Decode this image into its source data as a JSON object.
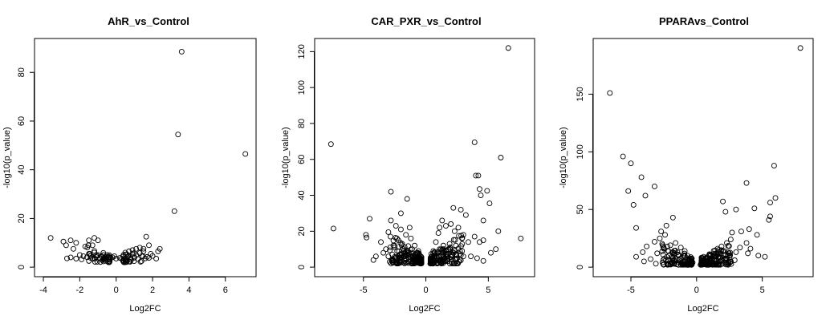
{
  "chart_data": [
    {
      "type": "scatter",
      "title": "AhR_vs_Control",
      "xlabel": "Log2FC",
      "ylabel": "-log10(p_value)",
      "xlim": [
        -4,
        7.2
      ],
      "ylim": [
        0,
        90
      ],
      "xticks": [
        -4,
        -2,
        0,
        2,
        4,
        6
      ],
      "yticks": [
        0,
        20,
        40,
        60,
        80
      ],
      "points": [
        [
          3.6,
          88.5
        ],
        [
          3.4,
          54.5
        ],
        [
          7.1,
          46.5
        ],
        [
          3.2,
          23
        ],
        [
          -3.6,
          12
        ],
        [
          1.65,
          12.5
        ],
        [
          -1.2,
          12
        ],
        [
          -1.0,
          11
        ],
        [
          -1.5,
          11
        ],
        [
          -2.5,
          11
        ],
        [
          -2.9,
          10.5
        ],
        [
          -2.2,
          10
        ],
        [
          -2.75,
          9
        ],
        [
          -1.3,
          9
        ],
        [
          -1.7,
          8.5
        ],
        [
          1.8,
          9
        ],
        [
          -2.35,
          7.5
        ],
        [
          2.4,
          7.5
        ],
        [
          2.3,
          6.5
        ],
        [
          1.3,
          8
        ],
        [
          1.1,
          7.5
        ],
        [
          0.9,
          7
        ],
        [
          0.7,
          6.5
        ],
        [
          0.5,
          6
        ],
        [
          0.4,
          5
        ],
        [
          1.5,
          6.5
        ],
        [
          1.9,
          5.5
        ],
        [
          -2.5,
          4
        ],
        [
          -2.2,
          3.5
        ],
        [
          -1.8,
          4.5
        ],
        [
          -1.5,
          5.5
        ],
        [
          -1.2,
          6
        ],
        [
          -1.0,
          5
        ],
        [
          -0.8,
          4.5
        ],
        [
          -0.6,
          4
        ],
        [
          -0.4,
          3.5
        ],
        [
          -0.2,
          4
        ],
        [
          0.0,
          3.5
        ],
        [
          -0.1,
          4.5
        ],
        [
          -1.9,
          3.2
        ],
        [
          -2.0,
          5
        ],
        [
          -1.4,
          3.8
        ],
        [
          -0.9,
          3.5
        ],
        [
          -0.7,
          3.2
        ],
        [
          -0.5,
          5
        ],
        [
          0.3,
          3.5
        ],
        [
          0.5,
          3.2
        ],
        [
          0.6,
          4.2
        ],
        [
          0.8,
          3.6
        ],
        [
          1.0,
          4
        ],
        [
          1.2,
          3.3
        ],
        [
          1.4,
          4.5
        ],
        [
          1.6,
          3.6
        ],
        [
          1.8,
          3.8
        ],
        [
          2.0,
          4.6
        ],
        [
          2.2,
          3.5
        ],
        [
          0.2,
          3.8
        ],
        [
          0.9,
          5.5
        ],
        [
          1.1,
          5
        ],
        [
          0.7,
          4.8
        ],
        [
          1.3,
          5.8
        ],
        [
          -1.1,
          4.2
        ],
        [
          -1.3,
          3.4
        ],
        [
          -0.3,
          3.9
        ],
        [
          -1.6,
          4.1
        ],
        [
          -2.7,
          3.6
        ],
        [
          0.4,
          4.4
        ],
        [
          1.7,
          4.2
        ],
        [
          -0.55,
          3.5
        ]
      ]
    },
    {
      "type": "scatter",
      "title": "CAR_PXR_vs_Control",
      "xlabel": "Log2FC",
      "ylabel": "-log10(p_value)",
      "xlim": [
        -8.2,
        8.0
      ],
      "ylim": [
        0,
        122
      ],
      "xticks": [
        -5,
        0,
        5
      ],
      "yticks": [
        0,
        20,
        40,
        60,
        80,
        100,
        120
      ],
      "points": [
        [
          6.6,
          122
        ],
        [
          -7.6,
          68.5
        ],
        [
          3.9,
          69.5
        ],
        [
          6.0,
          61
        ],
        [
          4.0,
          51
        ],
        [
          4.2,
          51
        ],
        [
          4.3,
          43.5
        ],
        [
          4.9,
          42.5
        ],
        [
          4.4,
          40
        ],
        [
          -2.8,
          42
        ],
        [
          -1.5,
          38
        ],
        [
          5.1,
          35.5
        ],
        [
          4.6,
          26
        ],
        [
          -7.4,
          21.5
        ],
        [
          -4.5,
          27
        ],
        [
          -2.8,
          26
        ],
        [
          -4.8,
          18
        ],
        [
          -4.75,
          16.5
        ],
        [
          5.8,
          20
        ],
        [
          7.6,
          16
        ],
        [
          -3.0,
          19.5
        ],
        [
          -2.4,
          23
        ],
        [
          -2.0,
          21
        ],
        [
          -1.6,
          18
        ],
        [
          -1.2,
          16
        ],
        [
          -0.9,
          12
        ],
        [
          -0.6,
          9
        ],
        [
          -0.4,
          6
        ],
        [
          -2.2,
          15
        ],
        [
          -2.6,
          12
        ],
        [
          -3.4,
          8
        ],
        [
          -4.0,
          6
        ],
        [
          -4.2,
          4
        ],
        [
          -3.6,
          14
        ],
        [
          -3.2,
          10
        ],
        [
          -1.8,
          10
        ],
        [
          1.3,
          26
        ],
        [
          1.6,
          23
        ],
        [
          2.0,
          24
        ],
        [
          2.3,
          20
        ],
        [
          2.6,
          22
        ],
        [
          3.0,
          18
        ],
        [
          3.4,
          14
        ],
        [
          3.9,
          17
        ],
        [
          4.3,
          14
        ],
        [
          4.6,
          15
        ],
        [
          1.0,
          19
        ],
        [
          0.8,
          14
        ],
        [
          0.6,
          9
        ],
        [
          0.5,
          6
        ],
        [
          1.4,
          12
        ],
        [
          1.8,
          10
        ],
        [
          2.4,
          12
        ],
        [
          2.9,
          9
        ],
        [
          3.6,
          6
        ],
        [
          4.1,
          5
        ],
        [
          4.6,
          3.5
        ],
        [
          5.2,
          8
        ],
        [
          5.6,
          10
        ],
        [
          3.2,
          29
        ],
        [
          2.8,
          32
        ],
        [
          2.2,
          33
        ],
        [
          -2.0,
          30
        ],
        [
          -1.3,
          22
        ],
        [
          1.1,
          22
        ],
        [
          -0.8,
          4
        ],
        [
          -0.6,
          3
        ],
        [
          -0.5,
          2.5
        ],
        [
          0.5,
          2.5
        ],
        [
          0.6,
          3
        ],
        [
          0.8,
          4
        ],
        [
          -1.0,
          6
        ],
        [
          1.0,
          6
        ],
        [
          -1.4,
          8
        ],
        [
          1.4,
          8
        ],
        [
          -1.7,
          6
        ],
        [
          1.7,
          6
        ],
        [
          -2.1,
          7
        ],
        [
          2.1,
          7
        ],
        [
          -2.5,
          5
        ],
        [
          2.5,
          5
        ],
        [
          -1.2,
          3.5
        ],
        [
          1.2,
          3.5
        ],
        [
          -0.7,
          8
        ],
        [
          0.7,
          8
        ],
        [
          -1.9,
          13
        ],
        [
          1.9,
          13
        ],
        [
          -2.3,
          9
        ],
        [
          2.3,
          9
        ],
        [
          -1.1,
          10
        ],
        [
          1.1,
          10
        ],
        [
          -2.7,
          4
        ],
        [
          2.7,
          4
        ],
        [
          -3.0,
          6
        ],
        [
          3.0,
          6
        ]
      ]
    },
    {
      "type": "scatter",
      "title": "PPARAvs_Control",
      "xlabel": "Log2FC",
      "ylabel": "-log10(p_value)",
      "xlim": [
        -7.2,
        8.2
      ],
      "ylim": [
        0,
        190
      ],
      "xticks": [
        -5,
        0,
        5
      ],
      "yticks": [
        0,
        50,
        100,
        150
      ],
      "points": [
        [
          7.9,
          190
        ],
        [
          -6.6,
          151
        ],
        [
          -5.6,
          96
        ],
        [
          -5.0,
          90
        ],
        [
          -4.8,
          54
        ],
        [
          -5.2,
          66
        ],
        [
          -4.2,
          78
        ],
        [
          -3.9,
          62
        ],
        [
          -3.2,
          70
        ],
        [
          -4.6,
          34
        ],
        [
          3.8,
          73
        ],
        [
          5.9,
          88
        ],
        [
          6.0,
          60
        ],
        [
          5.6,
          56
        ],
        [
          2.0,
          57
        ],
        [
          3.0,
          50
        ],
        [
          2.2,
          48
        ],
        [
          4.4,
          51
        ],
        [
          5.6,
          44
        ],
        [
          5.5,
          41
        ],
        [
          -1.8,
          43
        ],
        [
          -2.3,
          36
        ],
        [
          -2.7,
          31
        ],
        [
          -2.4,
          28
        ],
        [
          -2.8,
          25
        ],
        [
          -3.2,
          22
        ],
        [
          -3.8,
          18
        ],
        [
          -4.1,
          13
        ],
        [
          -4.6,
          9
        ],
        [
          -4.0,
          5
        ],
        [
          -3.5,
          7
        ],
        [
          -3.0,
          12
        ],
        [
          -2.5,
          16
        ],
        [
          -2.0,
          19
        ],
        [
          -1.6,
          21
        ],
        [
          -1.2,
          17
        ],
        [
          -0.9,
          14
        ],
        [
          -0.7,
          10
        ],
        [
          -0.5,
          7
        ],
        [
          -0.3,
          4
        ],
        [
          -1.4,
          11
        ],
        [
          -1.8,
          8
        ],
        [
          -2.2,
          6
        ],
        [
          -2.6,
          4
        ],
        [
          -3.1,
          3
        ],
        [
          -1.0,
          5
        ],
        [
          -0.8,
          3
        ],
        [
          -0.6,
          2
        ],
        [
          3.4,
          31
        ],
        [
          2.7,
          30
        ],
        [
          4.0,
          33
        ],
        [
          4.6,
          28
        ],
        [
          3.8,
          21
        ],
        [
          4.1,
          16
        ],
        [
          3.9,
          12
        ],
        [
          4.7,
          10
        ],
        [
          5.2,
          9
        ],
        [
          2.6,
          24
        ],
        [
          2.3,
          21
        ],
        [
          1.9,
          18
        ],
        [
          1.6,
          16
        ],
        [
          1.3,
          14
        ],
        [
          1.0,
          11
        ],
        [
          0.8,
          8
        ],
        [
          0.6,
          5
        ],
        [
          0.4,
          3
        ],
        [
          0.3,
          2
        ],
        [
          1.5,
          6
        ],
        [
          2.0,
          8
        ],
        [
          2.5,
          10
        ],
        [
          3.0,
          13
        ],
        [
          3.3,
          17
        ],
        [
          2.9,
          6
        ],
        [
          2.2,
          4
        ],
        [
          1.7,
          3
        ],
        [
          1.2,
          4
        ],
        [
          0.9,
          2
        ],
        [
          -1.3,
          7
        ],
        [
          1.4,
          9
        ],
        [
          -1.7,
          12
        ],
        [
          1.8,
          12
        ],
        [
          -2.1,
          10
        ],
        [
          2.1,
          14
        ],
        [
          -0.4,
          2.5
        ],
        [
          0.5,
          2.5
        ]
      ]
    }
  ]
}
